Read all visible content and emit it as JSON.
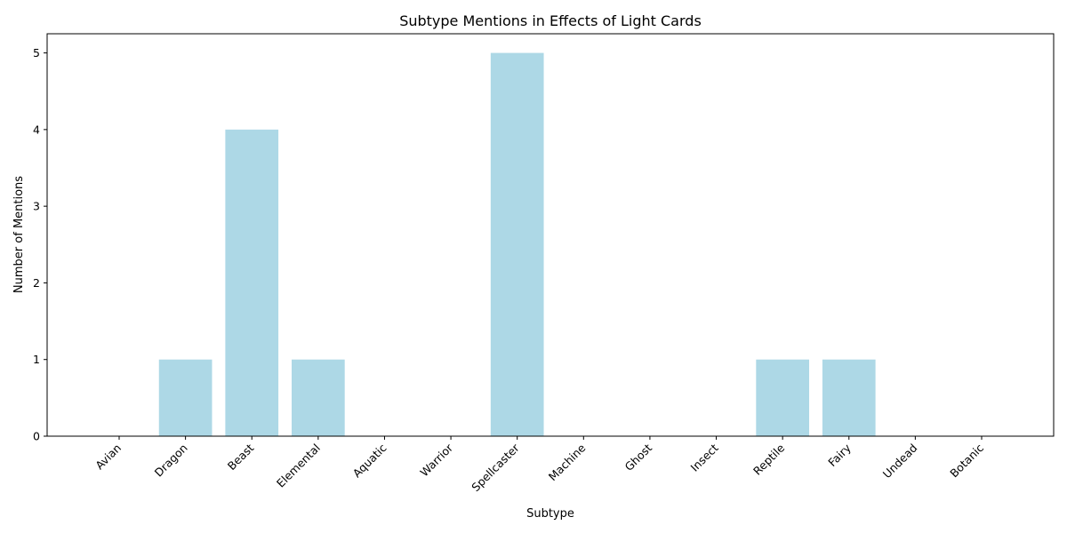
{
  "chart_data": {
    "type": "bar",
    "title": "Subtype Mentions in Effects of Light Cards",
    "xlabel": "Subtype",
    "ylabel": "Number of Mentions",
    "categories": [
      "Avian",
      "Dragon",
      "Beast",
      "Elemental",
      "Aquatic",
      "Warrior",
      "Spellcaster",
      "Machine",
      "Ghost",
      "Insect",
      "Reptile",
      "Fairy",
      "Undead",
      "Botanic"
    ],
    "values": [
      0,
      1,
      4,
      1,
      0,
      0,
      5,
      0,
      0,
      0,
      1,
      1,
      0,
      0
    ],
    "ylim": [
      0,
      5.25
    ],
    "yticks": [
      0,
      1,
      2,
      3,
      4,
      5
    ],
    "bar_color": "#add8e6",
    "grid": false,
    "legend": "none"
  }
}
